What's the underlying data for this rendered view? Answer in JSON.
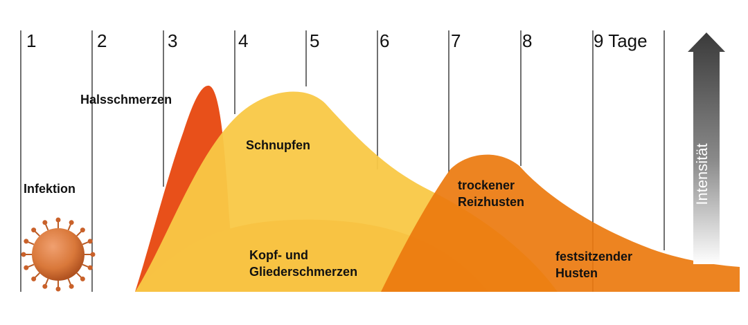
{
  "days": [
    "1",
    "2",
    "3",
    "4",
    "5",
    "6",
    "7",
    "8",
    "9 Tage"
  ],
  "labels": {
    "infektion": "Infektion",
    "halsschmerzen": "Halsschmerzen",
    "schnupfen": "Schnupfen",
    "kopf_1": "Kopf- und",
    "kopf_2": "Gliederschmerzen",
    "reizhusten_1": "trockener",
    "reizhusten_2": "Reizhusten",
    "husten_1": "festsitzender",
    "husten_2": "Husten",
    "intensitaet": "Intensität"
  },
  "colors": {
    "halsschmerzen": "#e8501a",
    "schnupfen": "#f9c846",
    "kopf_glieder": "#ec6a1c",
    "husten": "#ec7a0e",
    "overlap": "#f3a212",
    "virus": "#d9783a"
  },
  "icons": {
    "virus": "virus-icon",
    "arrow": "intensity-arrow-icon"
  }
}
